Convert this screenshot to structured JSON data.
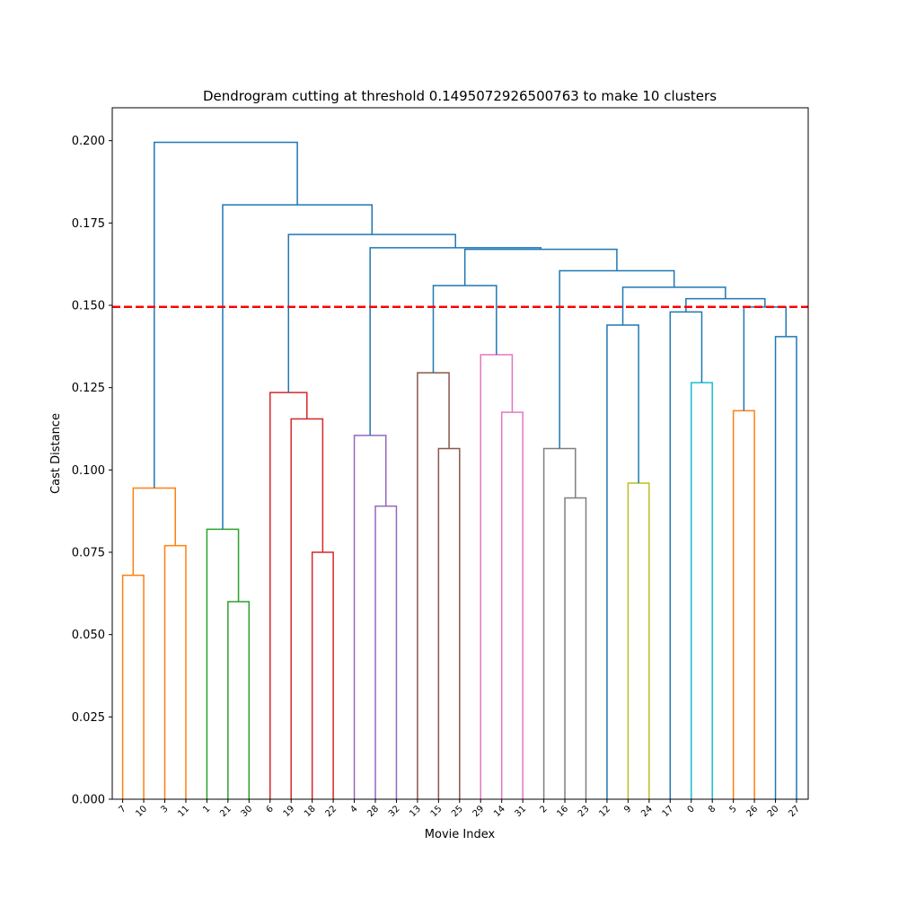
{
  "chart_data": {
    "type": "dendrogram",
    "title": "Dendrogram cutting at threshold 0.1495072926500763 to make 10 clusters",
    "xlabel": "Movie Index",
    "ylabel": "Cast Distance",
    "ylim": [
      0,
      0.21
    ],
    "yticks": [
      "0.000",
      "0.025",
      "0.050",
      "0.075",
      "0.100",
      "0.125",
      "0.150",
      "0.175",
      "0.200"
    ],
    "threshold": 0.1495072926500763,
    "threshold_style": {
      "color": "#ff0000",
      "dashed": true
    },
    "leaves": [
      "7",
      "10",
      "3",
      "11",
      "1",
      "21",
      "30",
      "6",
      "19",
      "18",
      "22",
      "4",
      "28",
      "32",
      "13",
      "15",
      "25",
      "29",
      "14",
      "31",
      "2",
      "16",
      "23",
      "12",
      "9",
      "24",
      "17",
      "0",
      "8",
      "5",
      "26",
      "20",
      "27"
    ],
    "default_link_color": "#1f77b4",
    "links": [
      {
        "id": "m1",
        "left": "7",
        "right": "10",
        "height": 0.068,
        "color": "#ff7f0e"
      },
      {
        "id": "m2",
        "left": "3",
        "right": "11",
        "height": 0.077,
        "color": "#ff7f0e"
      },
      {
        "id": "m3",
        "left": "m1",
        "right": "m2",
        "height": 0.0945,
        "color": "#ff7f0e"
      },
      {
        "id": "m4",
        "left": "21",
        "right": "30",
        "height": 0.06,
        "color": "#2ca02c"
      },
      {
        "id": "m5",
        "left": "1",
        "right": "m4",
        "height": 0.082,
        "color": "#2ca02c"
      },
      {
        "id": "m6",
        "left": "18",
        "right": "22",
        "height": 0.075,
        "color": "#d62728"
      },
      {
        "id": "m7",
        "left": "19",
        "right": "m6",
        "height": 0.1155,
        "color": "#d62728"
      },
      {
        "id": "m8",
        "left": "6",
        "right": "m7",
        "height": 0.1235,
        "color": "#d62728"
      },
      {
        "id": "m9",
        "left": "28",
        "right": "32",
        "height": 0.089,
        "color": "#9467bd"
      },
      {
        "id": "m10",
        "left": "4",
        "right": "m9",
        "height": 0.1105,
        "color": "#9467bd"
      },
      {
        "id": "m11",
        "left": "15",
        "right": "25",
        "height": 0.1065,
        "color": "#8c564b"
      },
      {
        "id": "m12",
        "left": "13",
        "right": "m11",
        "height": 0.1295,
        "color": "#8c564b"
      },
      {
        "id": "m13",
        "left": "14",
        "right": "31",
        "height": 0.1175,
        "color": "#e377c2"
      },
      {
        "id": "m14",
        "left": "29",
        "right": "m13",
        "height": 0.135,
        "color": "#e377c2"
      },
      {
        "id": "m15",
        "left": "16",
        "right": "23",
        "height": 0.0915,
        "color": "#7f7f7f"
      },
      {
        "id": "m16",
        "left": "2",
        "right": "m15",
        "height": 0.1065,
        "color": "#7f7f7f"
      },
      {
        "id": "m17",
        "left": "9",
        "right": "24",
        "height": 0.096,
        "color": "#bcbd22"
      },
      {
        "id": "m18",
        "left": "12",
        "right": "m17",
        "height": 0.144
      },
      {
        "id": "m19",
        "left": "0",
        "right": "8",
        "height": 0.1265,
        "color": "#17becf"
      },
      {
        "id": "m20",
        "left": "17",
        "right": "m19",
        "height": 0.148
      },
      {
        "id": "m21",
        "left": "5",
        "right": "26",
        "height": 0.118,
        "color": "#ff7f0e"
      },
      {
        "id": "m22",
        "left": "20",
        "right": "27",
        "height": 0.1405
      },
      {
        "id": "m23",
        "left": "m21",
        "right": "m22",
        "height": 0.1495
      },
      {
        "id": "m24",
        "left": "m20",
        "right": "m23",
        "height": 0.152
      },
      {
        "id": "m25",
        "left": "m18",
        "right": "m24",
        "height": 0.1555
      },
      {
        "id": "m26",
        "left": "m16",
        "right": "m25",
        "height": 0.1605
      },
      {
        "id": "m27",
        "left": "m12",
        "right": "m14",
        "height": 0.156
      },
      {
        "id": "m28",
        "left": "m27",
        "right": "m26",
        "height": 0.167
      },
      {
        "id": "m29",
        "left": "m10",
        "right": "m28",
        "height": 0.1675
      },
      {
        "id": "m30",
        "left": "m8",
        "right": "m29",
        "height": 0.1715
      },
      {
        "id": "m31",
        "left": "m5",
        "right": "m30",
        "height": 0.1805
      },
      {
        "id": "m32",
        "left": "m3",
        "right": "m31",
        "height": 0.1995
      }
    ]
  }
}
